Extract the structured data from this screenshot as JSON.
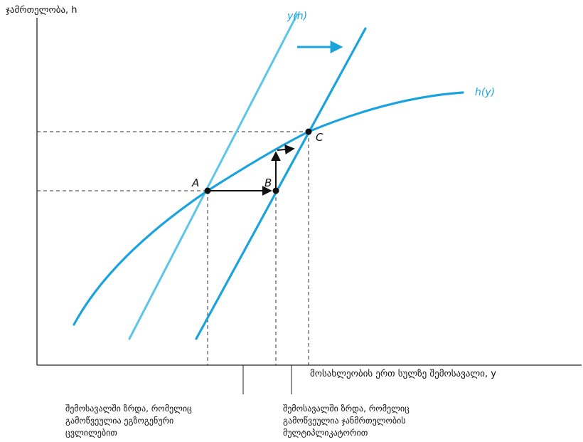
{
  "axes": {
    "y_label": "ჯამრთელობა, h",
    "x_label": "მოსახლეობის ერთ სულზე შემოსავალი, y"
  },
  "curves": {
    "y_of_h": "y(h)",
    "h_of_y": "h(y)"
  },
  "points": {
    "a": "A",
    "b": "B",
    "c": "C"
  },
  "notes": {
    "left": [
      "შემოსავალში ზრდა, რომელიც",
      "გამოწვეულია ეგზოგენური",
      "ცვლილებით"
    ],
    "right": [
      "შემოსავალში ზრდა, რომელიც",
      "გამოწვეულია ჯანმრთელობის",
      "მულტიპლიკატორით"
    ]
  },
  "colors": {
    "curve": "#1aa3dc",
    "curve_light": "#5ec5ea",
    "ink": "#111111"
  }
}
